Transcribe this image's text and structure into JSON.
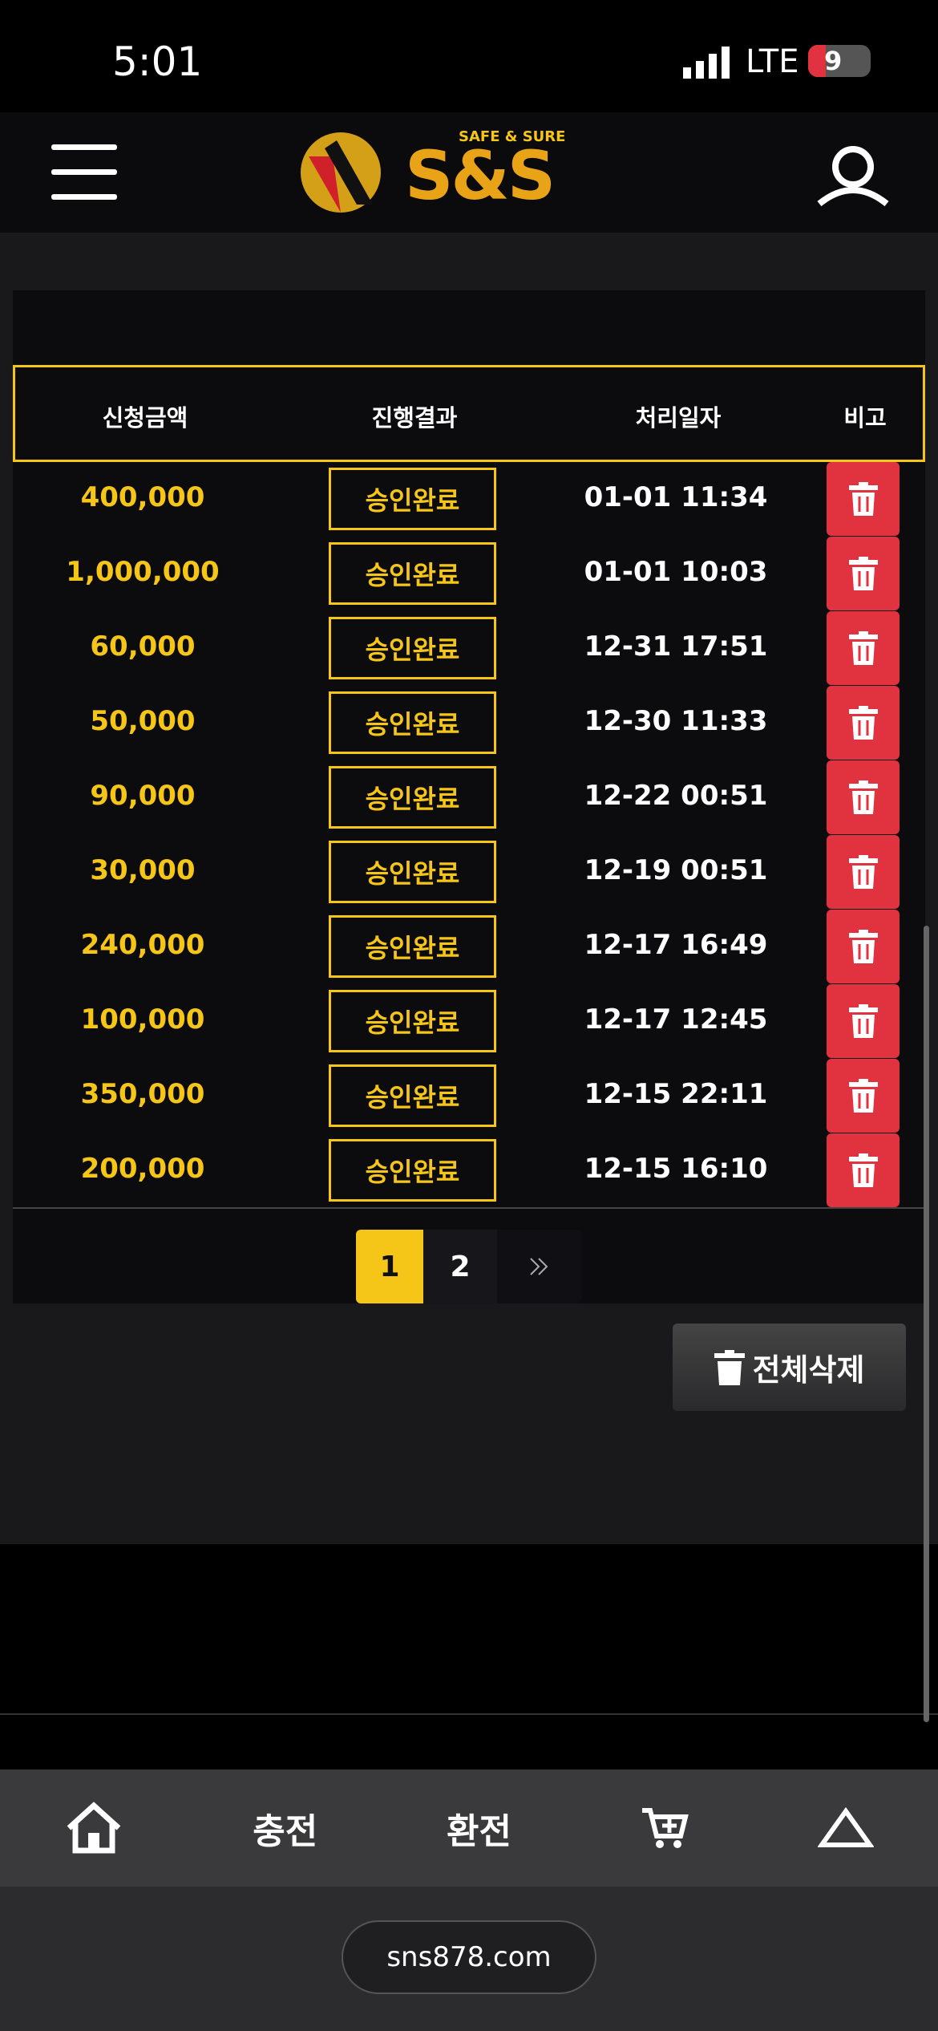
{
  "status_bar": {
    "time": "5:01",
    "network": "LTE",
    "battery": "9"
  },
  "header": {
    "tagline": "SAFE & SURE",
    "logo": "S&S"
  },
  "table": {
    "headers": [
      "신청금액",
      "진행결과",
      "처리일자",
      "비고"
    ],
    "rows": [
      [
        "400,000",
        "승인완료",
        "01-01 11:34"
      ],
      [
        "1,000,000",
        "승인완료",
        "01-01 10:03"
      ],
      [
        "60,000",
        "승인완료",
        "12-31 17:51"
      ],
      [
        "50,000",
        "승인완료",
        "12-30 11:33"
      ],
      [
        "90,000",
        "승인완료",
        "12-22 00:51"
      ],
      [
        "30,000",
        "승인완료",
        "12-19 00:51"
      ],
      [
        "240,000",
        "승인완료",
        "12-17 16:49"
      ],
      [
        "100,000",
        "승인완료",
        "12-17 12:45"
      ],
      [
        "350,000",
        "승인완료",
        "12-15 22:11"
      ],
      [
        "200,000",
        "승인완료",
        "12-15 16:10"
      ]
    ]
  },
  "pagination": {
    "pages": [
      "1",
      "2"
    ]
  },
  "delete_all": "전체삭제",
  "bottom_nav": {
    "charge": "충전",
    "exchange": "환전"
  },
  "url": "sns878.com"
}
